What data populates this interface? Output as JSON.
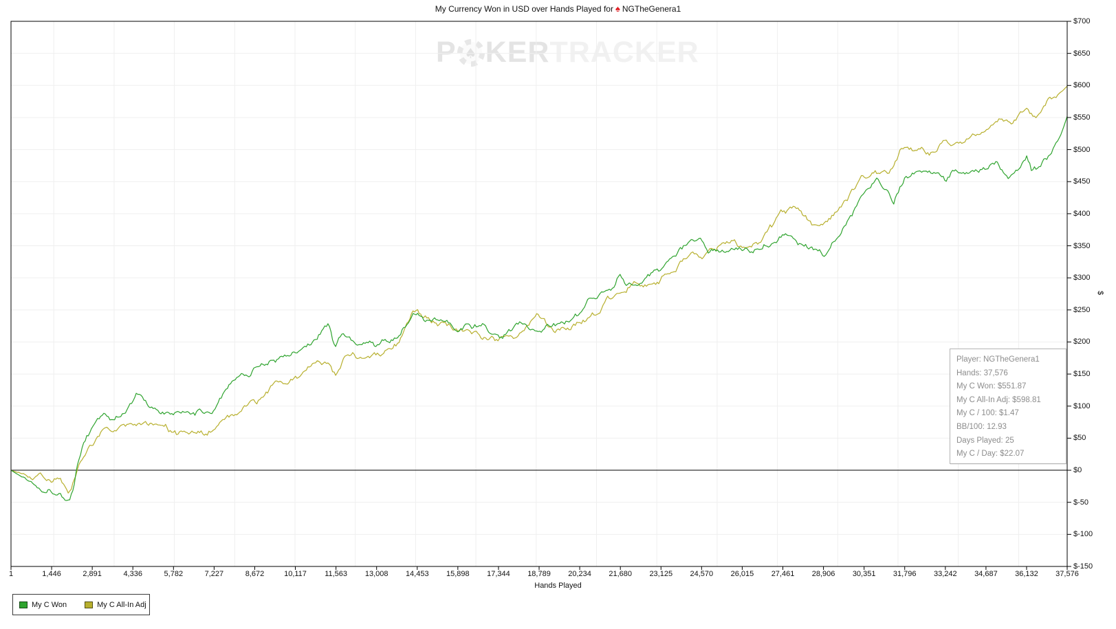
{
  "title": {
    "text_before_icon": "My Currency Won in USD over Hands Played for",
    "site_icon": "red-spade",
    "player": "NGTheGenera1"
  },
  "watermark": {
    "part1": "P",
    "part2": "KER",
    "part3": "TRACKER"
  },
  "axes": {
    "x": {
      "label": "Hands Played",
      "tick_values": [
        1,
        1446,
        2891,
        4336,
        5782,
        7227,
        8672,
        10117,
        11563,
        13008,
        14453,
        15898,
        17344,
        18789,
        20234,
        21680,
        23125,
        24570,
        26015,
        27461,
        28906,
        30351,
        31796,
        33242,
        34687,
        36132,
        37576
      ],
      "tick_labels": [
        "1",
        "1,446",
        "2,891",
        "4,336",
        "5,782",
        "7,227",
        "8,672",
        "10,117",
        "11,563",
        "13,008",
        "14,453",
        "15,898",
        "17,344",
        "18,789",
        "20,234",
        "21,680",
        "23,125",
        "24,570",
        "26,015",
        "27,461",
        "28,906",
        "30,351",
        "31,796",
        "33,242",
        "34,687",
        "36,132",
        "37,576"
      ]
    },
    "y": {
      "label": "$",
      "tick_values": [
        700,
        650,
        600,
        550,
        500,
        450,
        400,
        350,
        300,
        250,
        200,
        150,
        100,
        50,
        0,
        -50,
        -100,
        -150
      ],
      "tick_labels": [
        "$700",
        "$650",
        "$600",
        "$550",
        "$500",
        "$450",
        "$400",
        "$350",
        "$300",
        "$250",
        "$200",
        "$150",
        "$100",
        "$50",
        "$0",
        "$-50",
        "$-100",
        "$-150"
      ]
    }
  },
  "legend": [
    {
      "label": "My C Won",
      "color": "#2ea32e"
    },
    {
      "label": "My C All-In Adj",
      "color": "#b7af2d"
    }
  ],
  "info_box": {
    "lines": [
      "Player: NGTheGenera1",
      "Hands: 37,576",
      "My C Won: $551.87",
      "My C All-In Adj: $598.81",
      "My C / 100: $1.47",
      "BB/100: 12.93",
      "Days Played: 25",
      "My C / Day: $22.07"
    ]
  },
  "colors": {
    "my_c_won": "#2ea32e",
    "my_c_all_in_adj": "#b7af2d",
    "grid": "#efefef",
    "axis": "#000000",
    "zero_line": "#000000",
    "info_text": "#8c8c8c",
    "title_spade": "#e01e24",
    "watermark_dark": "#e4e4e4",
    "watermark_light": "#f1f1f1"
  },
  "chart_data": {
    "type": "line",
    "title": "My Currency Won in USD over Hands Played for NGTheGenera1",
    "xlabel": "Hands Played",
    "ylabel": "$",
    "xlim": [
      1,
      37576
    ],
    "ylim": [
      -150,
      700
    ],
    "grid": true,
    "zero_line": true,
    "legend_position": "bottom-left",
    "series": [
      {
        "name": "My C Won",
        "color": "#2ea32e",
        "final_value": 551.87,
        "points": [
          [
            1,
            0
          ],
          [
            300,
            -8
          ],
          [
            700,
            -15
          ],
          [
            1100,
            -20
          ],
          [
            1446,
            -25
          ],
          [
            1700,
            -22
          ],
          [
            1900,
            -30
          ],
          [
            2100,
            -38
          ],
          [
            2250,
            -20
          ],
          [
            2400,
            15
          ],
          [
            2600,
            45
          ],
          [
            2891,
            70
          ],
          [
            3100,
            85
          ],
          [
            3300,
            92
          ],
          [
            3600,
            80
          ],
          [
            3900,
            88
          ],
          [
            4100,
            100
          ],
          [
            4336,
            115
          ],
          [
            4500,
            125
          ],
          [
            4700,
            115
          ],
          [
            5000,
            102
          ],
          [
            5300,
            98
          ],
          [
            5782,
            95
          ],
          [
            6100,
            92
          ],
          [
            6400,
            88
          ],
          [
            6800,
            95
          ],
          [
            7000,
            88
          ],
          [
            7227,
            100
          ],
          [
            7400,
            118
          ],
          [
            7700,
            135
          ],
          [
            8000,
            148
          ],
          [
            8300,
            152
          ],
          [
            8672,
            160
          ],
          [
            9000,
            168
          ],
          [
            9400,
            172
          ],
          [
            9800,
            182
          ],
          [
            10117,
            190
          ],
          [
            10500,
            198
          ],
          [
            10800,
            205
          ],
          [
            11100,
            222
          ],
          [
            11300,
            228
          ],
          [
            11450,
            200
          ],
          [
            11563,
            190
          ],
          [
            11800,
            208
          ],
          [
            12000,
            212
          ],
          [
            12300,
            200
          ],
          [
            12600,
            196
          ],
          [
            13008,
            196
          ],
          [
            13400,
            202
          ],
          [
            13800,
            215
          ],
          [
            14100,
            232
          ],
          [
            14300,
            247
          ],
          [
            14453,
            242
          ],
          [
            14700,
            232
          ],
          [
            15000,
            228
          ],
          [
            15400,
            236
          ],
          [
            15898,
            226
          ],
          [
            16200,
            232
          ],
          [
            16600,
            228
          ],
          [
            17000,
            220
          ],
          [
            17344,
            214
          ],
          [
            17700,
            228
          ],
          [
            18100,
            232
          ],
          [
            18400,
            215
          ],
          [
            18789,
            207
          ],
          [
            19000,
            222
          ],
          [
            19300,
            230
          ],
          [
            19700,
            236
          ],
          [
            20234,
            240
          ],
          [
            20500,
            252
          ],
          [
            20800,
            262
          ],
          [
            21100,
            272
          ],
          [
            21400,
            288
          ],
          [
            21680,
            312
          ],
          [
            21900,
            295
          ],
          [
            22200,
            288
          ],
          [
            22600,
            294
          ],
          [
            23125,
            312
          ],
          [
            23500,
            330
          ],
          [
            23800,
            342
          ],
          [
            24200,
            350
          ],
          [
            24570,
            357
          ],
          [
            24800,
            342
          ],
          [
            25100,
            340
          ],
          [
            25500,
            347
          ],
          [
            26015,
            342
          ],
          [
            26400,
            348
          ],
          [
            26800,
            362
          ],
          [
            27100,
            372
          ],
          [
            27461,
            380
          ],
          [
            27800,
            372
          ],
          [
            28200,
            358
          ],
          [
            28500,
            350
          ],
          [
            28906,
            345
          ],
          [
            29300,
            358
          ],
          [
            29700,
            388
          ],
          [
            30000,
            412
          ],
          [
            30351,
            440
          ],
          [
            30600,
            455
          ],
          [
            30800,
            465
          ],
          [
            31000,
            450
          ],
          [
            31200,
            438
          ],
          [
            31400,
            405
          ],
          [
            31600,
            428
          ],
          [
            31796,
            452
          ],
          [
            32000,
            462
          ],
          [
            32300,
            472
          ],
          [
            32600,
            465
          ],
          [
            32900,
            455
          ],
          [
            33242,
            447
          ],
          [
            33600,
            460
          ],
          [
            34000,
            453
          ],
          [
            34400,
            462
          ],
          [
            34687,
            470
          ],
          [
            35000,
            482
          ],
          [
            35300,
            477
          ],
          [
            35600,
            472
          ],
          [
            35900,
            480
          ],
          [
            36132,
            494
          ],
          [
            36300,
            472
          ],
          [
            36600,
            478
          ],
          [
            36900,
            492
          ],
          [
            37100,
            505
          ],
          [
            37300,
            522
          ],
          [
            37450,
            538
          ],
          [
            37576,
            551.87
          ]
        ]
      },
      {
        "name": "My C All-In Adj",
        "color": "#b7af2d",
        "final_value": 598.81,
        "points": [
          [
            1,
            0
          ],
          [
            300,
            -6
          ],
          [
            700,
            -12
          ],
          [
            1100,
            -18
          ],
          [
            1446,
            -24
          ],
          [
            1700,
            -20
          ],
          [
            1900,
            -28
          ],
          [
            2100,
            -32
          ],
          [
            2250,
            -15
          ],
          [
            2400,
            8
          ],
          [
            2600,
            20
          ],
          [
            2891,
            32
          ],
          [
            3100,
            48
          ],
          [
            3300,
            55
          ],
          [
            3600,
            52
          ],
          [
            3900,
            58
          ],
          [
            4100,
            60
          ],
          [
            4336,
            64
          ],
          [
            4600,
            70
          ],
          [
            5000,
            78
          ],
          [
            5300,
            68
          ],
          [
            5782,
            58
          ],
          [
            6100,
            55
          ],
          [
            6400,
            52
          ],
          [
            6800,
            58
          ],
          [
            7000,
            55
          ],
          [
            7227,
            62
          ],
          [
            7400,
            70
          ],
          [
            7700,
            82
          ],
          [
            8000,
            92
          ],
          [
            8300,
            98
          ],
          [
            8672,
            106
          ],
          [
            9000,
            118
          ],
          [
            9400,
            128
          ],
          [
            9800,
            136
          ],
          [
            10117,
            141
          ],
          [
            10500,
            150
          ],
          [
            10800,
            158
          ],
          [
            11100,
            166
          ],
          [
            11300,
            162
          ],
          [
            11450,
            152
          ],
          [
            11563,
            150
          ],
          [
            11800,
            170
          ],
          [
            12000,
            184
          ],
          [
            12300,
            178
          ],
          [
            12600,
            172
          ],
          [
            13008,
            180
          ],
          [
            13400,
            188
          ],
          [
            13800,
            196
          ],
          [
            14100,
            225
          ],
          [
            14300,
            240
          ],
          [
            14453,
            235
          ],
          [
            14700,
            225
          ],
          [
            15000,
            218
          ],
          [
            15400,
            212
          ],
          [
            15898,
            205
          ],
          [
            16200,
            202
          ],
          [
            16600,
            198
          ],
          [
            17000,
            196
          ],
          [
            17344,
            194
          ],
          [
            17700,
            205
          ],
          [
            18100,
            212
          ],
          [
            18400,
            228
          ],
          [
            18789,
            238
          ],
          [
            19000,
            228
          ],
          [
            19300,
            220
          ],
          [
            19700,
            228
          ],
          [
            20234,
            236
          ],
          [
            20500,
            244
          ],
          [
            20800,
            252
          ],
          [
            21100,
            262
          ],
          [
            21400,
            270
          ],
          [
            21680,
            280
          ],
          [
            21900,
            284
          ],
          [
            22200,
            288
          ],
          [
            22600,
            292
          ],
          [
            23125,
            302
          ],
          [
            23500,
            318
          ],
          [
            23800,
            328
          ],
          [
            24200,
            336
          ],
          [
            24570,
            342
          ],
          [
            24800,
            346
          ],
          [
            25100,
            350
          ],
          [
            25500,
            352
          ],
          [
            26015,
            346
          ],
          [
            26400,
            355
          ],
          [
            26800,
            368
          ],
          [
            27100,
            375
          ],
          [
            27461,
            386
          ],
          [
            27800,
            396
          ],
          [
            28200,
            385
          ],
          [
            28500,
            376
          ],
          [
            28906,
            382
          ],
          [
            29300,
            398
          ],
          [
            29700,
            418
          ],
          [
            30000,
            432
          ],
          [
            30351,
            450
          ],
          [
            30600,
            452
          ],
          [
            30800,
            455
          ],
          [
            31000,
            452
          ],
          [
            31200,
            458
          ],
          [
            31400,
            468
          ],
          [
            31600,
            488
          ],
          [
            31796,
            505
          ],
          [
            32000,
            510
          ],
          [
            32300,
            508
          ],
          [
            32600,
            500
          ],
          [
            32900,
            496
          ],
          [
            33242,
            510
          ],
          [
            33600,
            512
          ],
          [
            34000,
            516
          ],
          [
            34400,
            524
          ],
          [
            34687,
            530
          ],
          [
            35000,
            545
          ],
          [
            35300,
            550
          ],
          [
            35600,
            548
          ],
          [
            35900,
            555
          ],
          [
            36132,
            560
          ],
          [
            36300,
            556
          ],
          [
            36600,
            552
          ],
          [
            36900,
            568
          ],
          [
            37100,
            575
          ],
          [
            37300,
            585
          ],
          [
            37450,
            592
          ],
          [
            37576,
            598.81
          ]
        ]
      }
    ]
  }
}
